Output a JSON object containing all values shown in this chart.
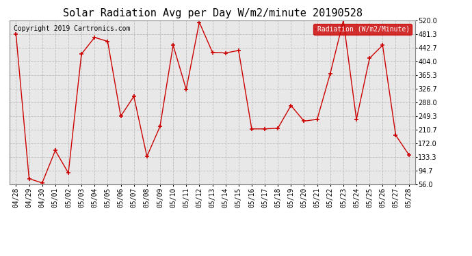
{
  "title": "Solar Radiation Avg per Day W/m2/minute 20190528",
  "copyright": "Copyright 2019 Cartronics.com",
  "legend_label": "Radiation (W/m2/Minute)",
  "dates": [
    "04/28",
    "04/29",
    "04/30",
    "05/01",
    "05/02",
    "05/03",
    "05/04",
    "05/05",
    "05/06",
    "05/07",
    "05/08",
    "05/09",
    "05/10",
    "05/11",
    "05/12",
    "05/13",
    "05/14",
    "05/15",
    "05/16",
    "05/17",
    "05/18",
    "05/19",
    "05/20",
    "05/21",
    "05/22",
    "05/23",
    "05/24",
    "05/25",
    "05/26",
    "05/27",
    "05/28"
  ],
  "values": [
    481.3,
    72.0,
    60.0,
    152.0,
    88.0,
    425.0,
    472.0,
    461.0,
    249.0,
    305.0,
    135.0,
    220.0,
    450.0,
    325.0,
    515.0,
    430.0,
    428.0,
    435.0,
    213.0,
    213.0,
    215.0,
    279.0,
    235.0,
    240.0,
    370.0,
    520.0,
    240.0,
    413.0,
    450.0,
    195.0,
    140.0
  ],
  "line_color": "#cc0000",
  "marker": "+",
  "marker_size": 4,
  "marker_edge_width": 1.2,
  "line_width": 1.0,
  "grid_color": "#bbbbbb",
  "bg_color": "#ffffff",
  "plot_bg_color": "#e8e8e8",
  "ylim": [
    56.0,
    520.0
  ],
  "yticks": [
    56.0,
    94.7,
    133.3,
    172.0,
    210.7,
    249.3,
    288.0,
    326.7,
    365.3,
    404.0,
    442.7,
    481.3,
    520.0
  ],
  "legend_bg": "#cc0000",
  "legend_text_color": "#ffffff",
  "title_fontsize": 11,
  "axis_fontsize": 7,
  "copyright_fontsize": 7,
  "legend_fontsize": 7
}
